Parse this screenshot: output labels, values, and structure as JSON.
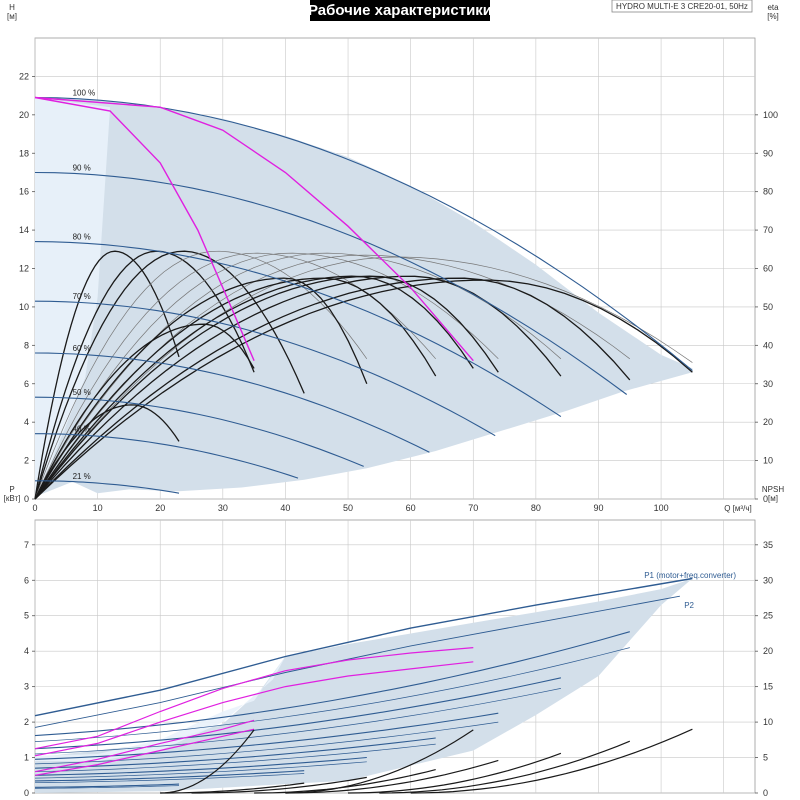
{
  "header": {
    "title": "Рабочие характеристики",
    "pump_id": "HYDRO MULTI-E 3 CRE20-01, 50Hz"
  },
  "colors": {
    "envelope": "#d3dfea",
    "envelope_light": "#e9f2fb",
    "grid": "#c8c8c8",
    "speed_curve": "#2f5c92",
    "system_curve": "#1a1a1a",
    "system_curve_light": "#777777",
    "highlight": "#e020e0"
  },
  "chart_data": [
    {
      "type": "line",
      "name": "top",
      "xlabel": "Q [м³/ч]",
      "ylabel_left": [
        "H",
        "[м]"
      ],
      "ylabel_right": [
        "eta",
        "[%]"
      ],
      "xlim": [
        0,
        115
      ],
      "xticks": [
        0,
        10,
        20,
        30,
        40,
        50,
        60,
        70,
        80,
        90,
        100
      ],
      "ylim": [
        0,
        24
      ],
      "yticks": [
        0,
        2,
        4,
        6,
        8,
        10,
        12,
        14,
        16,
        18,
        20,
        22
      ],
      "eta_lim": [
        0,
        120
      ],
      "eta_ticks": [
        0,
        10,
        20,
        30,
        40,
        50,
        60,
        70,
        80,
        90,
        100
      ],
      "grid": true,
      "envelope_light": [
        [
          0,
          20.9
        ],
        [
          12,
          20.4
        ],
        [
          10,
          10.5
        ],
        [
          8,
          6.3
        ],
        [
          0.6,
          0.3
        ],
        [
          0,
          0
        ]
      ],
      "envelope": [
        [
          0,
          20.9
        ],
        [
          10,
          20.75
        ],
        [
          20,
          20.4
        ],
        [
          30,
          19.8
        ],
        [
          40,
          18.9
        ],
        [
          50,
          17.8
        ],
        [
          60,
          16.3
        ],
        [
          70,
          14.4
        ],
        [
          80,
          12.2
        ],
        [
          90,
          9.7
        ],
        [
          100,
          7.5
        ],
        [
          105,
          6.8
        ],
        [
          105,
          6.6
        ],
        [
          94,
          5.6
        ],
        [
          85,
          4.6
        ],
        [
          74,
          3.5
        ],
        [
          64,
          2.5
        ],
        [
          53,
          1.6
        ],
        [
          43,
          1.0
        ],
        [
          33,
          0.6
        ],
        [
          23,
          0.4
        ],
        [
          15,
          0.5
        ],
        [
          10,
          0.3
        ],
        [
          6,
          0.9
        ],
        [
          0.6,
          0.2
        ],
        [
          0,
          0
        ]
      ],
      "speed_curves": [
        {
          "label": "100 %",
          "h0": 20.9,
          "qmax": 105
        },
        {
          "label": "90 %",
          "h0": 17.0,
          "qmax": 94.5
        },
        {
          "label": "80 %",
          "h0": 13.4,
          "qmax": 84
        },
        {
          "label": "70 %",
          "h0": 10.3,
          "qmax": 73.5
        },
        {
          "label": "60 %",
          "h0": 7.6,
          "qmax": 63
        },
        {
          "label": "50 %",
          "h0": 5.3,
          "qmax": 52.5
        },
        {
          "label": "40 %",
          "h0": 3.4,
          "qmax": 42
        },
        {
          "label": "21 %",
          "h0": 0.95,
          "qmax": 23
        }
      ],
      "highlight_curves": [
        {
          "name": "H-Q highlight A",
          "points": [
            [
              0,
              20.9
            ],
            [
              12,
              20.2
            ],
            [
              20,
              17.5
            ],
            [
              26,
              14
            ],
            [
              30,
              11
            ],
            [
              35,
              7.2
            ]
          ]
        },
        {
          "name": "H-Q highlight B",
          "points": [
            [
              0,
              20.9
            ],
            [
              20,
              20.4
            ],
            [
              30,
              19.2
            ],
            [
              40,
              17
            ],
            [
              50,
              14.2
            ],
            [
              60,
              11
            ],
            [
              70,
              7.2
            ]
          ]
        }
      ],
      "system_curves": [
        {
          "qmax": 23,
          "apex_q": 12.7,
          "apex_h": 12.9,
          "h_end": 7.4,
          "bold": true
        },
        {
          "qmax": 35,
          "apex_q": 19.4,
          "apex_h": 12.9,
          "h_end": 6.6,
          "bold": true
        },
        {
          "qmax": 43,
          "apex_q": 23.6,
          "apex_h": 12.9,
          "h_end": 5.5,
          "bold": true
        },
        {
          "qmax": 53,
          "apex_q": 29,
          "apex_h": 12.9,
          "h_end": 7.3,
          "bold": false
        },
        {
          "qmax": 64,
          "apex_q": 35.2,
          "apex_h": 12.8,
          "h_end": 7.3,
          "bold": false
        },
        {
          "qmax": 74,
          "apex_q": 40.7,
          "apex_h": 12.8,
          "h_end": 7.3,
          "bold": false
        },
        {
          "qmax": 84,
          "apex_q": 46.2,
          "apex_h": 12.8,
          "h_end": 7.3,
          "bold": false
        },
        {
          "qmax": 95,
          "apex_q": 52.3,
          "apex_h": 12.7,
          "h_end": 7.3,
          "bold": false
        },
        {
          "qmax": 105,
          "apex_q": 57.8,
          "apex_h": 12.6,
          "h_end": 7.1,
          "bold": false
        },
        {
          "qmax": 53,
          "apex_q": 40,
          "apex_h": 11.5,
          "h_end": 6.0,
          "bold": true
        },
        {
          "qmax": 64,
          "apex_q": 46,
          "apex_h": 11.5,
          "h_end": 6.4,
          "bold": true
        },
        {
          "qmax": 70,
          "apex_q": 51,
          "apex_h": 11.6,
          "h_end": 6.8,
          "bold": true
        },
        {
          "qmax": 74,
          "apex_q": 54,
          "apex_h": 11.6,
          "h_end": 6.6,
          "bold": true
        },
        {
          "qmax": 84,
          "apex_q": 60,
          "apex_h": 11.6,
          "h_end": 6.4,
          "bold": true
        },
        {
          "qmax": 95,
          "apex_q": 68,
          "apex_h": 11.5,
          "h_end": 6.2,
          "bold": true
        },
        {
          "qmax": 105,
          "apex_q": 72,
          "apex_h": 11.4,
          "h_end": 6.6,
          "bold": true
        },
        {
          "qmax": 35,
          "apex_q": 27,
          "apex_h": 9.1,
          "h_end": 6.8,
          "bold": true
        },
        {
          "qmax": 23,
          "apex_q": 15.5,
          "apex_h": 4.9,
          "h_end": 3.0,
          "bold": true
        }
      ]
    },
    {
      "type": "line",
      "name": "bottom",
      "ylabel_left": [
        "P",
        "[кВт]"
      ],
      "ylabel_right": [
        "NPSH",
        "[м]"
      ],
      "xlim": [
        0,
        115
      ],
      "ylim": [
        0,
        7.7
      ],
      "yticks": [
        0,
        1,
        2,
        3,
        4,
        5,
        6,
        7
      ],
      "npsh_lim": [
        0,
        38.5
      ],
      "npsh_ticks": [
        0,
        5,
        10,
        15,
        20,
        25,
        30,
        35
      ],
      "grid": true,
      "envelope_light": [
        [
          0,
          1.05
        ],
        [
          10,
          1.1
        ],
        [
          20,
          1.5
        ],
        [
          30,
          2.3
        ],
        [
          35,
          2.6
        ],
        [
          40,
          3.85
        ],
        [
          38,
          3.2
        ],
        [
          30,
          2.0
        ],
        [
          20,
          1.2
        ],
        [
          10,
          0.9
        ],
        [
          0,
          0.9
        ]
      ],
      "envelope": [
        [
          0,
          1.0
        ],
        [
          20,
          1.4
        ],
        [
          30,
          1.95
        ],
        [
          36,
          2.9
        ],
        [
          40,
          3.85
        ],
        [
          50,
          4.2
        ],
        [
          60,
          4.5
        ],
        [
          70,
          4.8
        ],
        [
          80,
          5.1
        ],
        [
          90,
          5.4
        ],
        [
          100,
          5.75
        ],
        [
          105,
          6.05
        ],
        [
          100,
          5.3
        ],
        [
          95,
          4.3
        ],
        [
          90,
          3.3
        ],
        [
          80,
          2.2
        ],
        [
          70,
          1.2
        ],
        [
          50,
          0.35
        ],
        [
          20,
          0.05
        ],
        [
          0,
          0
        ]
      ],
      "series": [
        {
          "name": "P1 (motor+freq.converter)",
          "points": [
            [
              0,
              2.18
            ],
            [
              20,
              2.9
            ],
            [
              40,
              3.85
            ],
            [
              60,
              4.65
            ],
            [
              80,
              5.3
            ],
            [
              105,
              6.05
            ]
          ]
        },
        {
          "name": "P2",
          "points": [
            [
              0,
              1.85
            ],
            [
              20,
              2.55
            ],
            [
              40,
              3.4
            ],
            [
              60,
              4.15
            ],
            [
              80,
              4.8
            ],
            [
              103,
              5.55
            ]
          ]
        }
      ],
      "p1_labels": [
        {
          "text": "P1 (motor+freq.converter)"
        },
        {
          "text": "P2"
        }
      ],
      "speed_power_curves": [
        {
          "h": [
            1.62,
            4.55
          ],
          "qmax": 95,
          "pair": [
            1.45,
            4.1
          ],
          "qmax2": 95
        },
        {
          "h": [
            1.25,
            3.25
          ],
          "qmax": 84,
          "pair": [
            1.1,
            2.95
          ],
          "qmax2": 84
        },
        {
          "h": [
            0.95,
            2.25
          ],
          "qmax": 74,
          "pair": [
            0.82,
            2.0
          ],
          "qmax2": 74
        },
        {
          "h": [
            0.7,
            1.55
          ],
          "qmax": 64,
          "pair": [
            0.6,
            1.38
          ],
          "qmax2": 64
        },
        {
          "h": [
            0.5,
            1.0
          ],
          "qmax": 53,
          "pair": [
            0.42,
            0.88
          ],
          "qmax2": 53
        },
        {
          "h": [
            0.34,
            0.63
          ],
          "qmax": 43,
          "pair": [
            0.29,
            0.55
          ],
          "qmax2": 43
        },
        {
          "h": [
            0.16,
            0.25
          ],
          "qmax": 23,
          "pair": [
            0.13,
            0.21
          ],
          "qmax2": 23
        }
      ],
      "highlight_curves": [
        {
          "points": [
            [
              0,
              1.25
            ],
            [
              10,
              1.6
            ],
            [
              20,
              2.3
            ],
            [
              30,
              2.95
            ],
            [
              40,
              3.45
            ],
            [
              50,
              3.75
            ],
            [
              60,
              3.95
            ],
            [
              70,
              4.1
            ]
          ]
        },
        {
          "points": [
            [
              0,
              1.05
            ],
            [
              10,
              1.4
            ],
            [
              20,
              2.0
            ],
            [
              30,
              2.55
            ],
            [
              40,
              3.0
            ],
            [
              50,
              3.3
            ],
            [
              60,
              3.5
            ],
            [
              70,
              3.7
            ]
          ]
        },
        {
          "points": [
            [
              0,
              0.6
            ],
            [
              10,
              0.95
            ],
            [
              20,
              1.4
            ],
            [
              30,
              1.8
            ],
            [
              35,
              2.05
            ]
          ]
        },
        {
          "points": [
            [
              0,
              0.5
            ],
            [
              10,
              0.8
            ],
            [
              20,
              1.2
            ],
            [
              30,
              1.6
            ],
            [
              35,
              1.8
            ]
          ]
        }
      ],
      "npsh_curves": [
        {
          "q0": 20,
          "qmax": 35,
          "n_end": 8.9
        },
        {
          "q0": 40,
          "qmax": 70,
          "n_end": 8.9
        },
        {
          "q0": 50,
          "qmax": 84,
          "n_end": 5.6
        },
        {
          "q0": 55,
          "qmax": 95,
          "n_end": 7.3
        },
        {
          "q0": 60,
          "qmax": 105,
          "n_end": 9.0
        },
        {
          "q0": 40,
          "qmax": 74,
          "n_end": 4.6
        },
        {
          "q0": 35,
          "qmax": 64,
          "n_end": 3.3
        },
        {
          "q0": 25,
          "qmax": 53,
          "n_end": 2.2
        },
        {
          "q0": 20,
          "qmax": 43,
          "n_end": 1.4
        }
      ]
    }
  ]
}
